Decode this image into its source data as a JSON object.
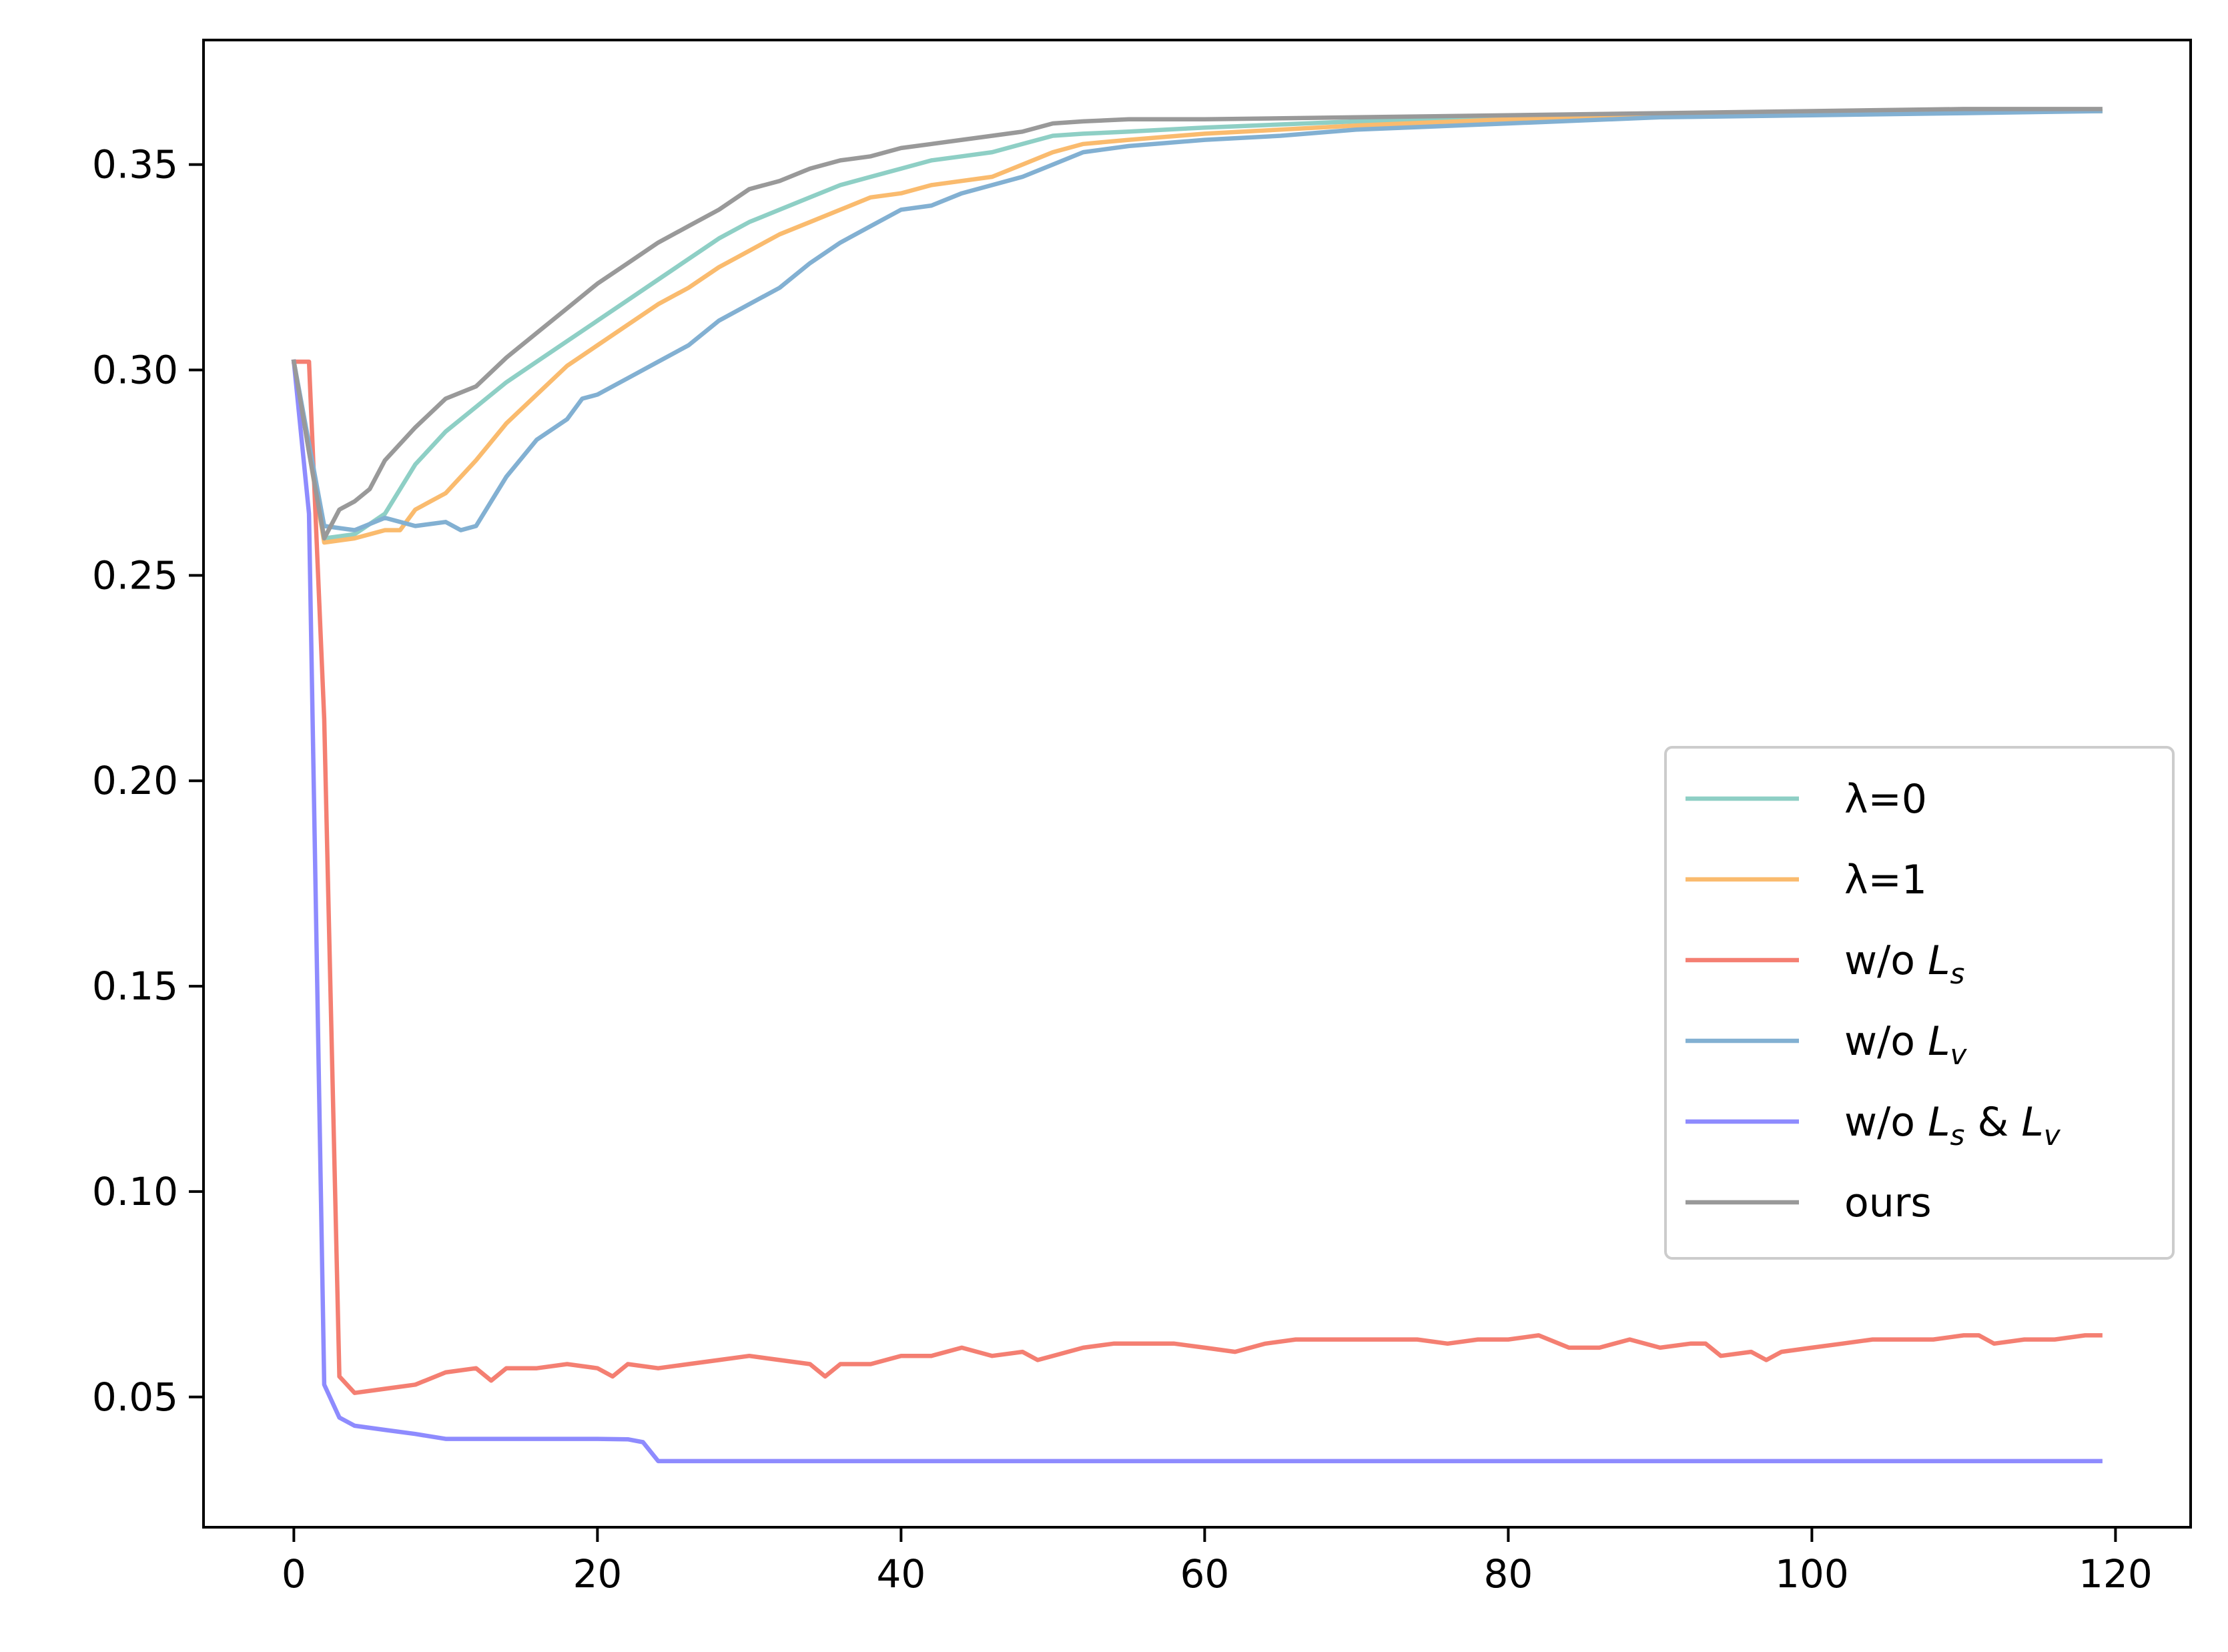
{
  "chart_data": {
    "type": "line",
    "title": "",
    "xlabel": "",
    "ylabel": "",
    "xlim": [
      -5.95,
      124.95
    ],
    "ylim": [
      0.0183,
      0.3803
    ],
    "x_ticks": [
      0,
      20,
      40,
      60,
      80,
      100,
      120
    ],
    "x_tick_labels": [
      "0",
      "20",
      "40",
      "60",
      "80",
      "100",
      "120"
    ],
    "y_ticks": [
      0.05,
      0.1,
      0.15,
      0.2,
      0.25,
      0.3,
      0.35
    ],
    "y_tick_labels": [
      "0.05",
      "0.10",
      "0.15",
      "0.20",
      "0.25",
      "0.30",
      "0.35"
    ],
    "grid": false,
    "legend_position": "center-right",
    "series": [
      {
        "name": "λ=0",
        "color": "#8ecfc5",
        "points": [
          [
            0,
            0.302
          ],
          [
            2,
            0.259
          ],
          [
            4,
            0.26
          ],
          [
            6,
            0.265
          ],
          [
            8,
            0.277
          ],
          [
            10,
            0.285
          ],
          [
            12,
            0.291
          ],
          [
            14,
            0.297
          ],
          [
            16,
            0.302
          ],
          [
            18,
            0.307
          ],
          [
            20,
            0.312
          ],
          [
            22,
            0.317
          ],
          [
            24,
            0.322
          ],
          [
            26,
            0.327
          ],
          [
            28,
            0.332
          ],
          [
            30,
            0.336
          ],
          [
            32,
            0.339
          ],
          [
            34,
            0.342
          ],
          [
            36,
            0.345
          ],
          [
            38,
            0.347
          ],
          [
            40,
            0.349
          ],
          [
            42,
            0.351
          ],
          [
            44,
            0.352
          ],
          [
            46,
            0.353
          ],
          [
            48,
            0.355
          ],
          [
            50,
            0.357
          ],
          [
            52,
            0.3575
          ],
          [
            55,
            0.358
          ],
          [
            60,
            0.359
          ],
          [
            70,
            0.3605
          ],
          [
            80,
            0.3615
          ],
          [
            90,
            0.362
          ],
          [
            100,
            0.3625
          ],
          [
            110,
            0.363
          ],
          [
            119,
            0.363
          ]
        ],
        "legend_label_base": "λ=0",
        "legend_label_sub": "",
        "legend_label_suffix": "",
        "legend_label_sub2": ""
      },
      {
        "name": "λ=1",
        "color": "#fabb6e",
        "points": [
          [
            0,
            0.302
          ],
          [
            2,
            0.258
          ],
          [
            4,
            0.259
          ],
          [
            6,
            0.261
          ],
          [
            7,
            0.261
          ],
          [
            8,
            0.266
          ],
          [
            10,
            0.27
          ],
          [
            12,
            0.278
          ],
          [
            14,
            0.287
          ],
          [
            16,
            0.294
          ],
          [
            18,
            0.301
          ],
          [
            20,
            0.306
          ],
          [
            22,
            0.311
          ],
          [
            24,
            0.316
          ],
          [
            26,
            0.32
          ],
          [
            28,
            0.325
          ],
          [
            30,
            0.329
          ],
          [
            32,
            0.333
          ],
          [
            34,
            0.336
          ],
          [
            36,
            0.339
          ],
          [
            38,
            0.342
          ],
          [
            40,
            0.343
          ],
          [
            42,
            0.345
          ],
          [
            44,
            0.346
          ],
          [
            46,
            0.347
          ],
          [
            48,
            0.35
          ],
          [
            50,
            0.353
          ],
          [
            52,
            0.355
          ],
          [
            55,
            0.356
          ],
          [
            60,
            0.3575
          ],
          [
            70,
            0.3595
          ],
          [
            80,
            0.361
          ],
          [
            90,
            0.3615
          ],
          [
            100,
            0.3625
          ],
          [
            110,
            0.363
          ],
          [
            119,
            0.363
          ]
        ],
        "legend_label_base": "λ=1",
        "legend_label_sub": "",
        "legend_label_suffix": "",
        "legend_label_sub2": ""
      },
      {
        "name": "w/o Ls",
        "color": "#f47f72",
        "points": [
          [
            0,
            0.302
          ],
          [
            1,
            0.302
          ],
          [
            2,
            0.215
          ],
          [
            3,
            0.055
          ],
          [
            4,
            0.051
          ],
          [
            6,
            0.052
          ],
          [
            8,
            0.053
          ],
          [
            10,
            0.056
          ],
          [
            12,
            0.057
          ],
          [
            13,
            0.054
          ],
          [
            14,
            0.057
          ],
          [
            16,
            0.057
          ],
          [
            18,
            0.058
          ],
          [
            20,
            0.057
          ],
          [
            21,
            0.055
          ],
          [
            22,
            0.058
          ],
          [
            24,
            0.057
          ],
          [
            26,
            0.058
          ],
          [
            28,
            0.059
          ],
          [
            30,
            0.06
          ],
          [
            32,
            0.059
          ],
          [
            34,
            0.058
          ],
          [
            35,
            0.055
          ],
          [
            36,
            0.058
          ],
          [
            38,
            0.058
          ],
          [
            40,
            0.06
          ],
          [
            42,
            0.06
          ],
          [
            44,
            0.062
          ],
          [
            46,
            0.06
          ],
          [
            48,
            0.061
          ],
          [
            49,
            0.059
          ],
          [
            50,
            0.06
          ],
          [
            52,
            0.062
          ],
          [
            54,
            0.063
          ],
          [
            56,
            0.063
          ],
          [
            58,
            0.063
          ],
          [
            60,
            0.062
          ],
          [
            62,
            0.061
          ],
          [
            64,
            0.063
          ],
          [
            66,
            0.064
          ],
          [
            68,
            0.064
          ],
          [
            70,
            0.064
          ],
          [
            72,
            0.064
          ],
          [
            74,
            0.064
          ],
          [
            76,
            0.063
          ],
          [
            78,
            0.064
          ],
          [
            80,
            0.064
          ],
          [
            82,
            0.065
          ],
          [
            84,
            0.062
          ],
          [
            86,
            0.062
          ],
          [
            88,
            0.064
          ],
          [
            90,
            0.062
          ],
          [
            92,
            0.063
          ],
          [
            93,
            0.063
          ],
          [
            94,
            0.06
          ],
          [
            96,
            0.061
          ],
          [
            97,
            0.059
          ],
          [
            98,
            0.061
          ],
          [
            100,
            0.062
          ],
          [
            102,
            0.063
          ],
          [
            104,
            0.064
          ],
          [
            106,
            0.064
          ],
          [
            108,
            0.064
          ],
          [
            110,
            0.065
          ],
          [
            111,
            0.065
          ],
          [
            112,
            0.063
          ],
          [
            114,
            0.064
          ],
          [
            116,
            0.064
          ],
          [
            118,
            0.065
          ],
          [
            119,
            0.065
          ]
        ],
        "legend_label_base": "w/o ",
        "legend_label_sub": "L",
        "legend_label_suffix": "",
        "legend_label_sub2": ""
      },
      {
        "name": "w/o Lv",
        "color": "#82b0d2",
        "points": [
          [
            0,
            0.302
          ],
          [
            2,
            0.262
          ],
          [
            4,
            0.261
          ],
          [
            6,
            0.264
          ],
          [
            8,
            0.262
          ],
          [
            10,
            0.263
          ],
          [
            11,
            0.261
          ],
          [
            12,
            0.262
          ],
          [
            14,
            0.274
          ],
          [
            16,
            0.283
          ],
          [
            18,
            0.288
          ],
          [
            19,
            0.293
          ],
          [
            20,
            0.294
          ],
          [
            22,
            0.298
          ],
          [
            24,
            0.302
          ],
          [
            26,
            0.306
          ],
          [
            28,
            0.312
          ],
          [
            30,
            0.316
          ],
          [
            32,
            0.32
          ],
          [
            34,
            0.326
          ],
          [
            36,
            0.331
          ],
          [
            38,
            0.335
          ],
          [
            40,
            0.339
          ],
          [
            42,
            0.34
          ],
          [
            44,
            0.343
          ],
          [
            46,
            0.345
          ],
          [
            48,
            0.347
          ],
          [
            50,
            0.35
          ],
          [
            52,
            0.353
          ],
          [
            55,
            0.3545
          ],
          [
            60,
            0.356
          ],
          [
            65,
            0.357
          ],
          [
            70,
            0.3585
          ],
          [
            80,
            0.36
          ],
          [
            90,
            0.3615
          ],
          [
            100,
            0.362
          ],
          [
            110,
            0.3625
          ],
          [
            119,
            0.363
          ]
        ],
        "legend_label_base": "w/o ",
        "legend_label_sub": "L",
        "legend_label_suffix": "",
        "legend_label_sub2": ""
      },
      {
        "name": "w/o Ls & Lv",
        "color": "#8e8bfe",
        "points": [
          [
            0,
            0.302
          ],
          [
            1,
            0.265
          ],
          [
            2,
            0.053
          ],
          [
            3,
            0.045
          ],
          [
            4,
            0.043
          ],
          [
            6,
            0.042
          ],
          [
            8,
            0.041
          ],
          [
            10,
            0.0398
          ],
          [
            12,
            0.0398
          ],
          [
            14,
            0.0398
          ],
          [
            16,
            0.0398
          ],
          [
            18,
            0.0398
          ],
          [
            20,
            0.0398
          ],
          [
            22,
            0.0397
          ],
          [
            23,
            0.039
          ],
          [
            24,
            0.0344
          ],
          [
            40,
            0.0344
          ],
          [
            60,
            0.0344
          ],
          [
            80,
            0.0344
          ],
          [
            100,
            0.0344
          ],
          [
            119,
            0.0344
          ]
        ],
        "legend_label_base": "w/o ",
        "legend_label_sub": "L",
        "legend_label_suffix": " & ",
        "legend_label_sub2": "L"
      },
      {
        "name": "ours",
        "color": "#999999",
        "points": [
          [
            0,
            0.302
          ],
          [
            1,
            0.28
          ],
          [
            2,
            0.259
          ],
          [
            3,
            0.266
          ],
          [
            4,
            0.268
          ],
          [
            5,
            0.271
          ],
          [
            6,
            0.278
          ],
          [
            8,
            0.286
          ],
          [
            10,
            0.293
          ],
          [
            12,
            0.296
          ],
          [
            14,
            0.303
          ],
          [
            16,
            0.309
          ],
          [
            18,
            0.315
          ],
          [
            20,
            0.321
          ],
          [
            22,
            0.326
          ],
          [
            24,
            0.331
          ],
          [
            26,
            0.335
          ],
          [
            28,
            0.339
          ],
          [
            30,
            0.344
          ],
          [
            32,
            0.346
          ],
          [
            34,
            0.349
          ],
          [
            36,
            0.351
          ],
          [
            38,
            0.352
          ],
          [
            40,
            0.354
          ],
          [
            42,
            0.355
          ],
          [
            44,
            0.356
          ],
          [
            46,
            0.357
          ],
          [
            48,
            0.358
          ],
          [
            50,
            0.36
          ],
          [
            52,
            0.3605
          ],
          [
            55,
            0.361
          ],
          [
            60,
            0.361
          ],
          [
            70,
            0.3615
          ],
          [
            80,
            0.362
          ],
          [
            90,
            0.3625
          ],
          [
            100,
            0.363
          ],
          [
            110,
            0.3635
          ],
          [
            119,
            0.3635
          ]
        ],
        "legend_label_base": "ours",
        "legend_label_sub": "",
        "legend_label_suffix": "",
        "legend_label_sub2": ""
      }
    ]
  },
  "legend": {
    "items": [
      {
        "label": "λ=0",
        "base": "λ=0",
        "sub": "",
        "mid": "",
        "sub2": ""
      },
      {
        "label": "λ=1",
        "base": "λ=1",
        "sub": "",
        "mid": "",
        "sub2": ""
      },
      {
        "label": "w/o Ls",
        "base": "w/o L",
        "sub": "s",
        "mid": "",
        "sub2": ""
      },
      {
        "label": "w/o Lv",
        "base": "w/o L",
        "sub": "v",
        "mid": "",
        "sub2": ""
      },
      {
        "label": "w/o Ls & Lv",
        "base": "w/o L",
        "sub": "s",
        "mid": " & L",
        "sub2": "v"
      },
      {
        "label": "ours",
        "base": "ours",
        "sub": "",
        "mid": "",
        "sub2": ""
      }
    ]
  }
}
